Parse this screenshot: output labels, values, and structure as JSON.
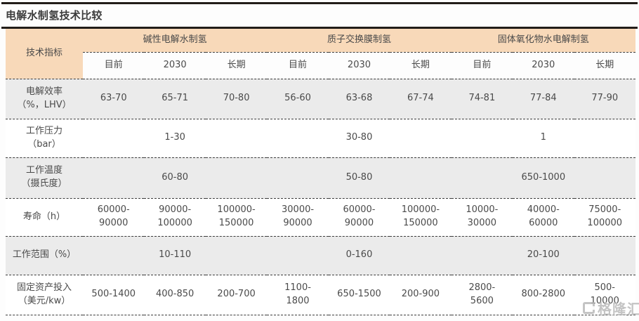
{
  "page": {
    "title": "电解水制氢技术比较"
  },
  "chart_data": {
    "type": "table",
    "title": "电解水制氢技术比较",
    "corner_label": "技术指标",
    "column_groups": [
      "碱性电解水制氢",
      "质子交换膜制氢",
      "固体氧化物水电解制氢"
    ],
    "sub_columns": [
      "目前",
      "2030",
      "长期"
    ],
    "rows": [
      {
        "label": "电解效率\n（%，LHV）",
        "values": [
          "63-70",
          "65-71",
          "70-80",
          "56-60",
          "63-68",
          "67-74",
          "74-81",
          "77-84",
          "77-90"
        ]
      },
      {
        "label": "工作压力\n（bar）",
        "span_values": [
          "1-30",
          "30-80",
          "1"
        ]
      },
      {
        "label": "工作温度\n（摄氏度）",
        "span_values": [
          "60-80",
          "50-80",
          "650-1000"
        ]
      },
      {
        "label": "寿命（h）",
        "values": [
          "60000-\n90000",
          "90000-\n100000",
          "100000-\n150000",
          "30000-\n90000",
          "60000-\n90000",
          "100000-\n150000",
          "10000-\n30000",
          "40000-\n60000",
          "75000-\n100000"
        ]
      },
      {
        "label": "工作范围（%）",
        "span_values": [
          "10-110",
          "0-160",
          "20-100"
        ]
      },
      {
        "label": "固定资产投入\n（美元/kw）",
        "values": [
          "500-1400",
          "400-850",
          "200-700",
          "1100-\n1800",
          "650-1500",
          "200-900",
          "2800-\n5600",
          "800-2800",
          "500-\n10000"
        ]
      }
    ]
  },
  "watermark": {
    "text": "格隆汇"
  },
  "colors": {
    "header_orange": "#f8d9b9",
    "row_gray": "#ebebeb",
    "rule_dark": "#221d19",
    "text": "#4a4a4a"
  }
}
